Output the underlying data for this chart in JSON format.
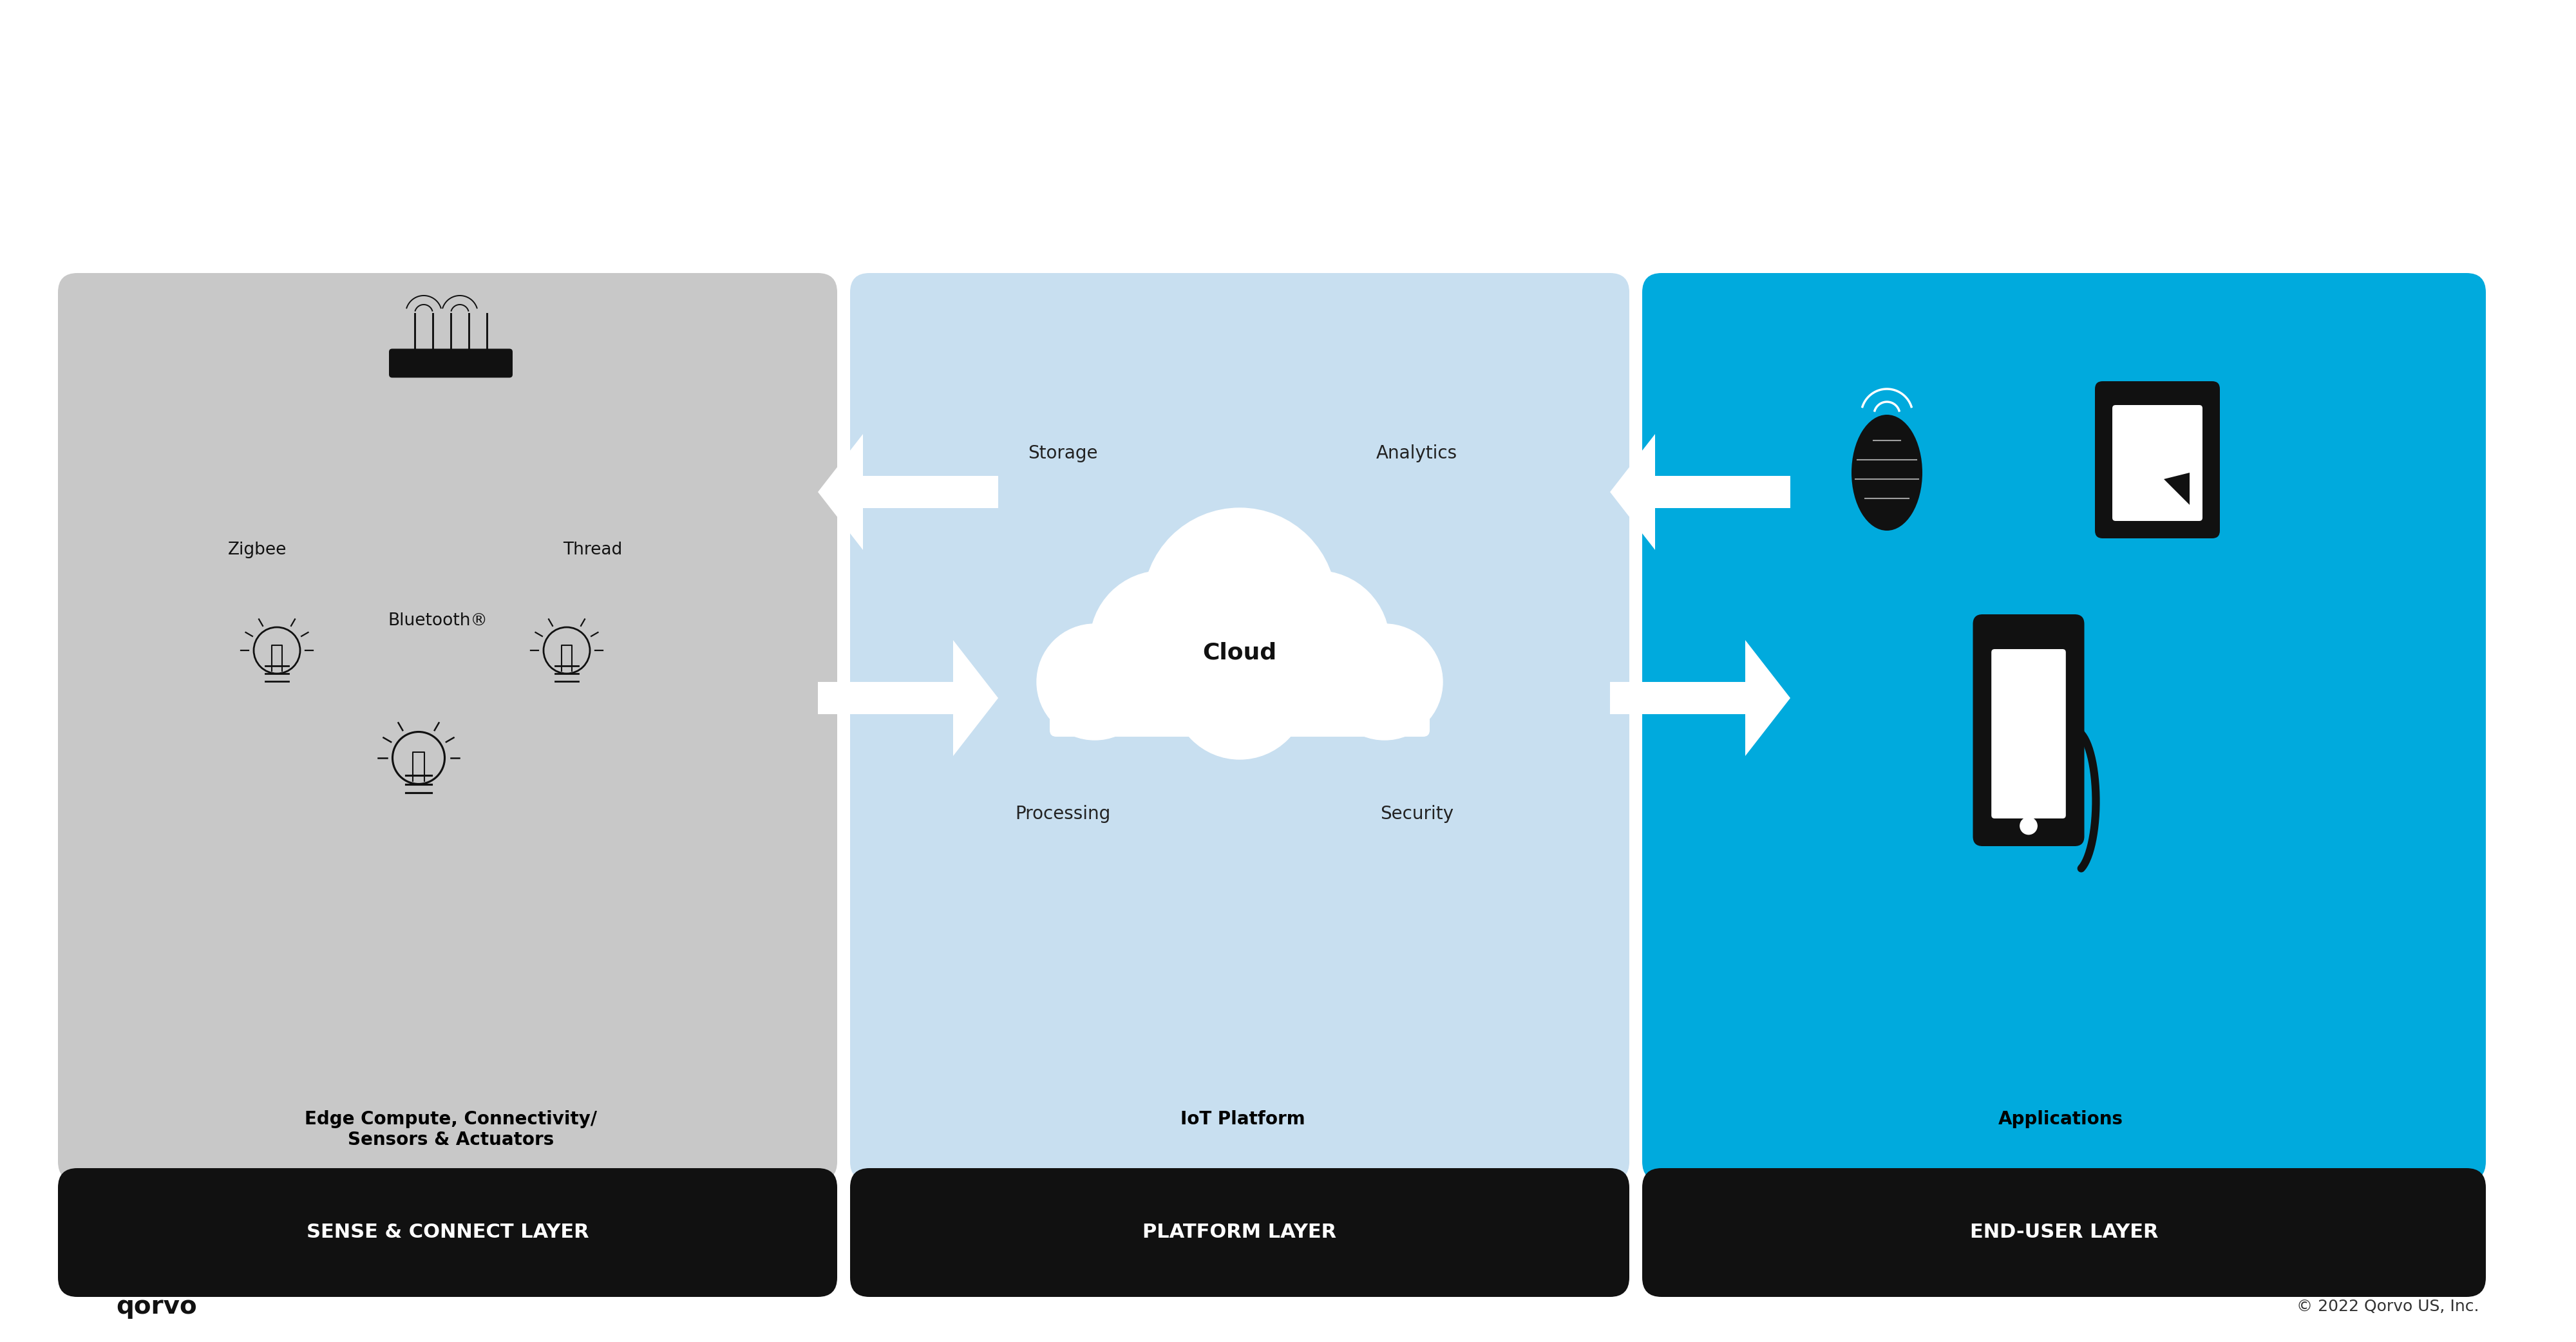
{
  "bg_color": "#ffffff",
  "panel_colors": [
    "#c8c8c8",
    "#c8dff0",
    "#00aadd"
  ],
  "panel_labels": [
    "Edge Compute, Connectivity/\nSensors & Actuators",
    "IoT Platform",
    "Applications"
  ],
  "layer_labels": [
    "SENSE & CONNECT LAYER",
    "PLATFORM LAYER",
    "END-USER LAYER"
  ],
  "platform_items_top": [
    "Storage",
    "Analytics"
  ],
  "platform_items_bottom": [
    "Processing",
    "Security"
  ],
  "cloud_label": "Cloud",
  "zigbee_label": "Zigbee",
  "bluetooth_label": "Bluetooth®",
  "thread_label": "Thread",
  "copyright": "© 2022 Qorvo US, Inc.",
  "qorvo_text": "qorvo",
  "arrow_color": "#ffffff",
  "label_color": "#000000",
  "layer_label_color": "#ffffff",
  "layer_bg_color": "#111111"
}
